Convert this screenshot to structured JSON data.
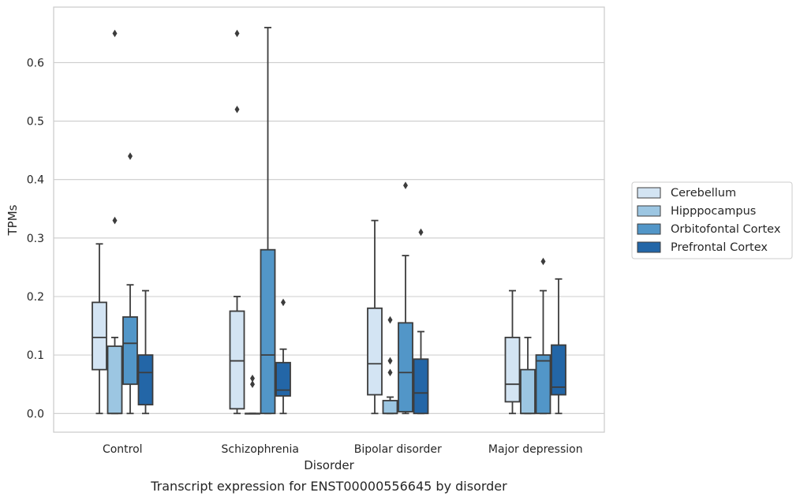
{
  "chart_data": {
    "type": "box",
    "xlabel": "Disorder",
    "ylabel": "TPMs",
    "caption": "Transcript expression for ENST00000556645 by disorder",
    "categories": [
      "Control",
      "Schizophrenia",
      "Bipolar disorder",
      "Major depression"
    ],
    "ylim": [
      -0.032,
      0.695
    ],
    "yticks": [
      "0.0",
      "0.1",
      "0.2",
      "0.3",
      "0.4",
      "0.5",
      "0.6"
    ],
    "grid": true,
    "legend_position": "right",
    "series": [
      {
        "name": "Cerebellum",
        "color": "#d3e4f3",
        "boxes": [
          {
            "whislo": 0.0,
            "q1": 0.075,
            "med": 0.13,
            "q3": 0.19,
            "whishi": 0.29,
            "fliers": []
          },
          {
            "whislo": 0.0,
            "q1": 0.008,
            "med": 0.09,
            "q3": 0.175,
            "whishi": 0.2,
            "fliers": [
              0.52,
              0.65
            ]
          },
          {
            "whislo": 0.0,
            "q1": 0.032,
            "med": 0.085,
            "q3": 0.18,
            "whishi": 0.33,
            "fliers": []
          },
          {
            "whislo": 0.0,
            "q1": 0.02,
            "med": 0.05,
            "q3": 0.13,
            "whishi": 0.21,
            "fliers": []
          }
        ]
      },
      {
        "name": "Hipppocampus",
        "color": "#9cc6e2",
        "boxes": [
          {
            "whislo": 0.0,
            "q1": 0.0,
            "med": 0.0,
            "q3": 0.115,
            "whishi": 0.13,
            "fliers": [
              0.33,
              0.65
            ]
          },
          {
            "whislo": 0.0,
            "q1": 0.0,
            "med": 0.0,
            "q3": 0.0,
            "whishi": 0.0,
            "fliers": [
              0.05,
              0.06
            ]
          },
          {
            "whislo": 0.0,
            "q1": 0.0,
            "med": 0.0,
            "q3": 0.022,
            "whishi": 0.028,
            "fliers": [
              0.07,
              0.09,
              0.16
            ]
          },
          {
            "whislo": 0.0,
            "q1": 0.0,
            "med": 0.0,
            "q3": 0.075,
            "whishi": 0.13,
            "fliers": []
          }
        ]
      },
      {
        "name": "Orbitofontal Cortex",
        "color": "#5296c8",
        "boxes": [
          {
            "whislo": 0.0,
            "q1": 0.05,
            "med": 0.12,
            "q3": 0.165,
            "whishi": 0.22,
            "fliers": [
              0.44
            ]
          },
          {
            "whislo": 0.0,
            "q1": 0.0,
            "med": 0.1,
            "q3": 0.28,
            "whishi": 0.66,
            "fliers": []
          },
          {
            "whislo": 0.0,
            "q1": 0.003,
            "med": 0.07,
            "q3": 0.155,
            "whishi": 0.27,
            "fliers": [
              0.39
            ]
          },
          {
            "whislo": 0.0,
            "q1": 0.0,
            "med": 0.09,
            "q3": 0.1,
            "whishi": 0.21,
            "fliers": [
              0.26
            ]
          }
        ]
      },
      {
        "name": "Prefrontal Cortex",
        "color": "#2366a7",
        "boxes": [
          {
            "whislo": 0.0,
            "q1": 0.015,
            "med": 0.07,
            "q3": 0.1,
            "whishi": 0.21,
            "fliers": []
          },
          {
            "whislo": 0.0,
            "q1": 0.03,
            "med": 0.04,
            "q3": 0.087,
            "whishi": 0.11,
            "fliers": [
              0.19
            ]
          },
          {
            "whislo": 0.0,
            "q1": 0.0,
            "med": 0.035,
            "q3": 0.093,
            "whishi": 0.14,
            "fliers": [
              0.31
            ]
          },
          {
            "whislo": 0.0,
            "q1": 0.032,
            "med": 0.045,
            "q3": 0.117,
            "whishi": 0.23,
            "fliers": []
          }
        ]
      }
    ]
  }
}
